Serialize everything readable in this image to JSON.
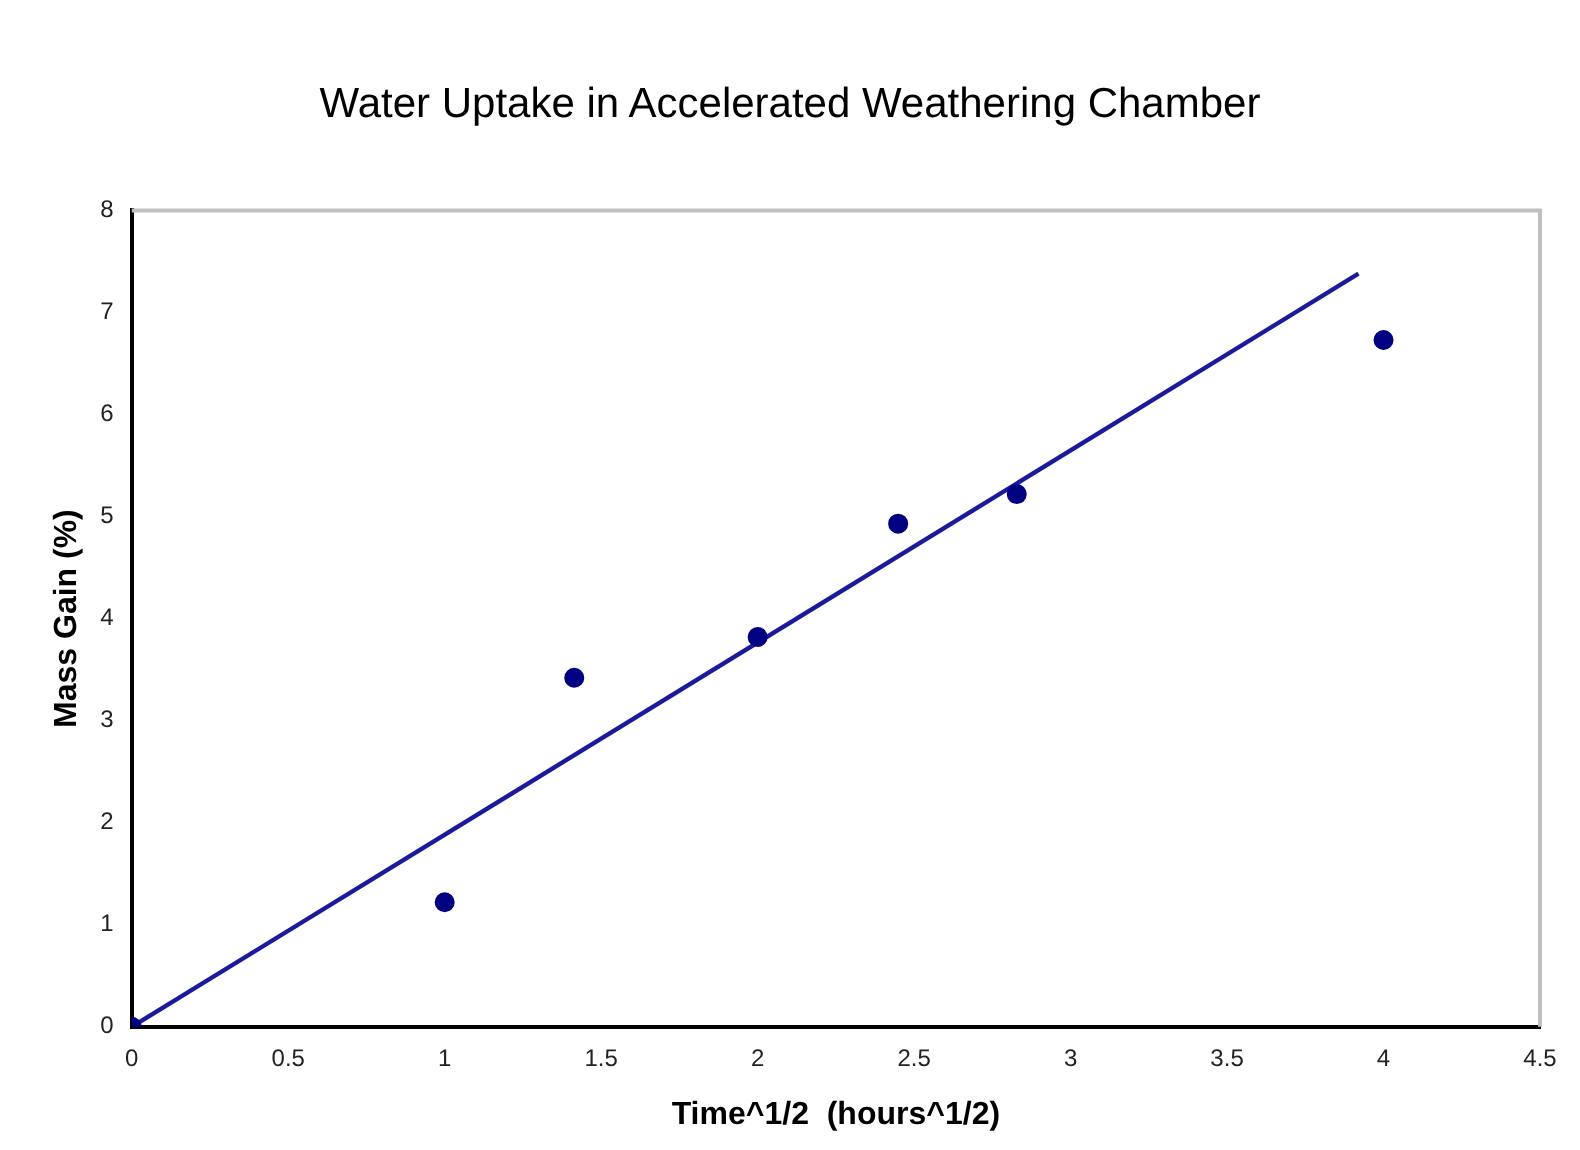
{
  "chart_data": {
    "type": "scatter",
    "title": "Water Uptake in Accelerated Weathering Chamber",
    "xlabel": "Time^1/2  (hours^1/2)",
    "ylabel": "Mass Gain (%)",
    "x": [
      0,
      1,
      1.414,
      2,
      2.449,
      2.828,
      4
    ],
    "series": [
      {
        "color": "#000080",
        "marker": "circle",
        "values": [
          0,
          1.22,
          3.42,
          3.82,
          4.93,
          5.22,
          6.73
        ]
      },
      {
        "type": "line",
        "color": "#1a1a9a",
        "x": [
          0,
          3.92
        ],
        "values": [
          0,
          7.38
        ]
      }
    ],
    "xlim": [
      0,
      4.5
    ],
    "xticks": [
      0,
      0.5,
      1,
      1.5,
      2,
      2.5,
      3,
      3.5,
      4,
      4.5
    ],
    "ylim": [
      0,
      8
    ],
    "yticks": [
      0,
      1,
      2,
      3,
      4,
      5,
      6,
      7,
      8
    ],
    "grid": false,
    "legend": false
  }
}
